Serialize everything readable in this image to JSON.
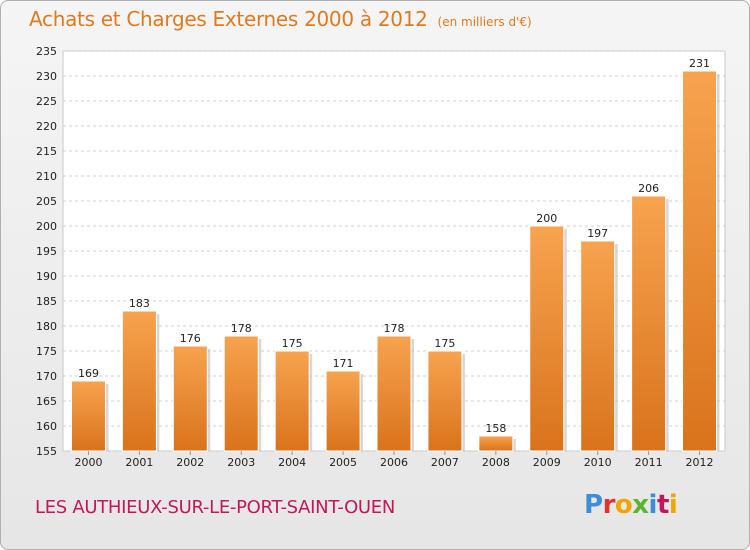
{
  "header": {
    "title": "Achats et Charges Externes 2000 à 2012",
    "subtitle": "(en milliers d'€)"
  },
  "footer": {
    "commune": "LES AUTHIEUX-SUR-LE-PORT-SAINT-OUEN",
    "logo_letters": [
      "P",
      "r",
      "o",
      "x",
      "i",
      "t",
      "i"
    ],
    "logo_colors": [
      "#3b8ed8",
      "#e0322e",
      "#f0a500",
      "#5cb531",
      "#3b8ed8",
      "#c2185b",
      "#f0a500"
    ]
  },
  "chart_data": {
    "type": "bar",
    "categories": [
      "2000",
      "2001",
      "2002",
      "2003",
      "2004",
      "2005",
      "2006",
      "2007",
      "2008",
      "2009",
      "2010",
      "2011",
      "2012"
    ],
    "values": [
      169,
      183,
      176,
      178,
      175,
      171,
      178,
      175,
      158,
      200,
      197,
      206,
      231
    ],
    "ylim": [
      155,
      235
    ],
    "yticks": [
      155,
      160,
      165,
      170,
      175,
      180,
      185,
      190,
      195,
      200,
      205,
      210,
      215,
      220,
      225,
      230,
      235
    ],
    "grid": true,
    "bar_color_light": "#f7a34f",
    "bar_color_dark": "#d9731c"
  }
}
